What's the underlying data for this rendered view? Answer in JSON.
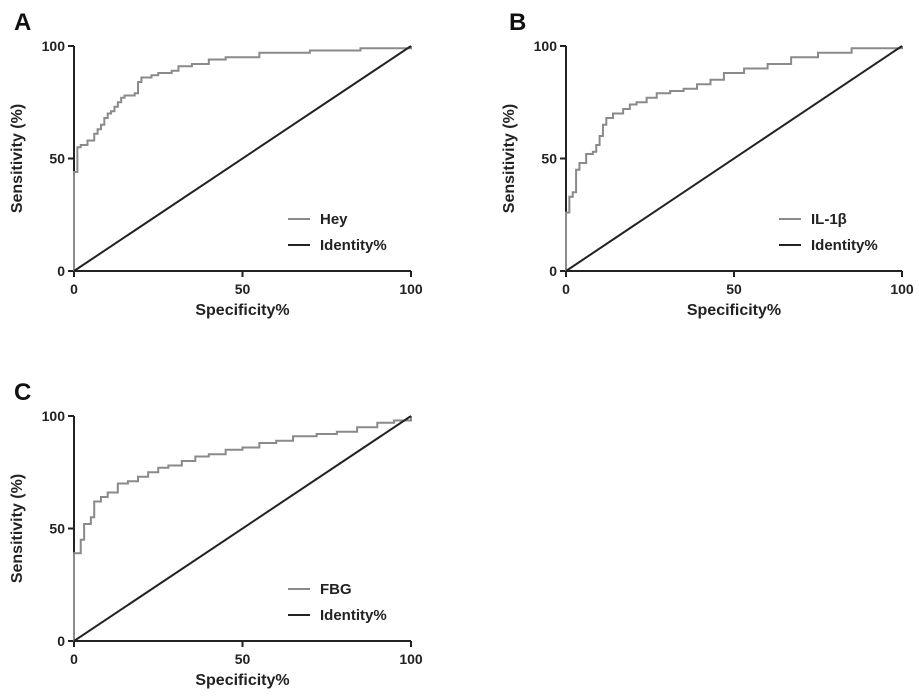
{
  "colors": {
    "roc": "#8a8a8a",
    "identity": "#222222",
    "axis": "#222222"
  },
  "chart_data": [
    {
      "panel": "A",
      "type": "line",
      "xlabel": "Specificity%",
      "ylabel": "Sensitivity (%)",
      "xlim": [
        0,
        100
      ],
      "ylim": [
        0,
        100
      ],
      "xticks": [
        "0",
        "50",
        "100"
      ],
      "yticks": [
        "0",
        "50",
        "100"
      ],
      "grid": false,
      "legend_position": "bottom-right",
      "series": [
        {
          "name": "Hey",
          "role": "roc",
          "x": [
            0,
            0,
            1,
            1,
            2,
            4,
            6,
            7,
            8,
            9,
            10,
            11,
            12,
            13,
            14,
            15,
            18,
            19,
            20,
            23,
            25,
            29,
            31,
            35,
            40,
            45,
            55,
            70,
            85,
            100
          ],
          "y": [
            0,
            44,
            44,
            55,
            56,
            58,
            61,
            63,
            65,
            68,
            70,
            71,
            73,
            75,
            77,
            78,
            79,
            84,
            86,
            87,
            88,
            89,
            91,
            92,
            94,
            95,
            97,
            98,
            99,
            100
          ]
        },
        {
          "name": "Identity%",
          "role": "identity",
          "x": [
            0,
            100
          ],
          "y": [
            0,
            100
          ]
        }
      ]
    },
    {
      "panel": "B",
      "type": "line",
      "xlabel": "Specificity%",
      "ylabel": "Sensitivity (%)",
      "xlim": [
        0,
        100
      ],
      "ylim": [
        0,
        100
      ],
      "xticks": [
        "0",
        "50",
        "100"
      ],
      "yticks": [
        "0",
        "50",
        "100"
      ],
      "grid": false,
      "legend_position": "bottom-right",
      "series": [
        {
          "name": "IL-1β",
          "role": "roc",
          "x": [
            0,
            0,
            1,
            1,
            2,
            3,
            4,
            6,
            8,
            9,
            10,
            11,
            12,
            14,
            17,
            19,
            21,
            24,
            27,
            31,
            35,
            39,
            43,
            47,
            53,
            60,
            67,
            75,
            85,
            100
          ],
          "y": [
            0,
            26,
            26,
            33,
            35,
            45,
            48,
            52,
            53,
            56,
            60,
            65,
            68,
            70,
            72,
            74,
            75,
            77,
            79,
            80,
            81,
            83,
            85,
            88,
            90,
            92,
            95,
            97,
            99,
            100
          ]
        },
        {
          "name": "Identity%",
          "role": "identity",
          "x": [
            0,
            100
          ],
          "y": [
            0,
            100
          ]
        }
      ]
    },
    {
      "panel": "C",
      "type": "line",
      "xlabel": "Specificity%",
      "ylabel": "Sensitivity (%)",
      "xlim": [
        0,
        100
      ],
      "ylim": [
        0,
        100
      ],
      "xticks": [
        "0",
        "50",
        "100"
      ],
      "yticks": [
        "0",
        "50",
        "100"
      ],
      "grid": false,
      "legend_position": "bottom-right",
      "series": [
        {
          "name": "FBG",
          "role": "roc",
          "x": [
            0,
            0,
            2,
            2,
            3,
            5,
            6,
            8,
            10,
            13,
            16,
            19,
            22,
            25,
            28,
            32,
            36,
            40,
            45,
            50,
            55,
            60,
            65,
            72,
            78,
            84,
            90,
            95,
            100
          ],
          "y": [
            0,
            39,
            39,
            45,
            52,
            55,
            62,
            64,
            66,
            70,
            71,
            73,
            75,
            77,
            78,
            80,
            82,
            83,
            85,
            86,
            88,
            89,
            91,
            92,
            93,
            95,
            97,
            98,
            100
          ]
        },
        {
          "name": "Identity%",
          "role": "identity",
          "x": [
            0,
            100
          ],
          "y": [
            0,
            100
          ]
        }
      ]
    }
  ]
}
